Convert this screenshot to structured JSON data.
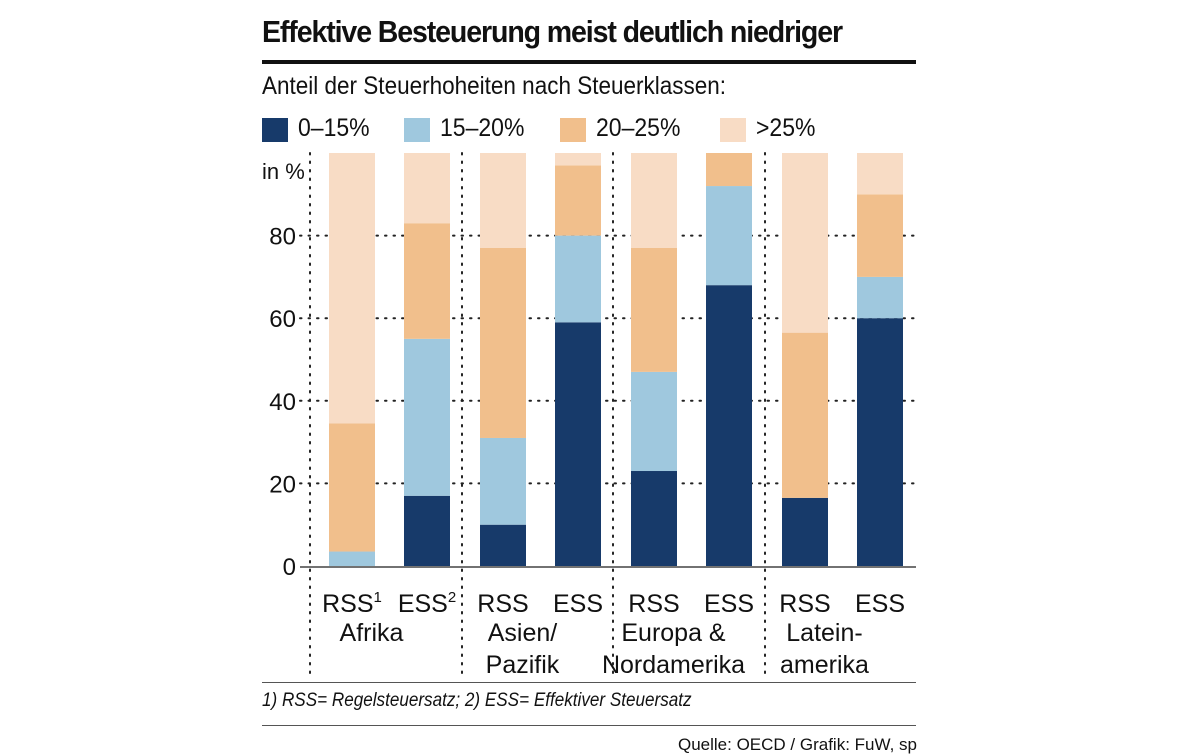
{
  "title": "Effektive Besteuerung meist deutlich niedriger",
  "subtitle": "Anteil der Steuerhoheiten nach Steuerklassen:",
  "legend": [
    {
      "label": "0–15%",
      "color": "#173a6a"
    },
    {
      "label": "15–20%",
      "color": "#9fc8de"
    },
    {
      "label": "20–25%",
      "color": "#f1bf8c"
    },
    {
      "label": ">25%",
      "color": "#f8dcc5"
    }
  ],
  "footnote": "1) RSS= Regelsteuersatz;   2) ESS= Effektiver Steuersatz",
  "source": "Quelle: OECD / Grafik: FuW, sp",
  "chart_data": {
    "type": "bar",
    "stacked": true,
    "ylabel": "in %",
    "ylim": [
      0,
      100
    ],
    "yticks": [
      0,
      20,
      40,
      60,
      80
    ],
    "grid": "dotted horizontal",
    "groups": [
      {
        "name_lines": [
          "Afrika"
        ],
        "bars": [
          {
            "label": "RSS",
            "sup": "1"
          },
          {
            "label": "ESS",
            "sup": "2"
          }
        ]
      },
      {
        "name_lines": [
          "Asien/",
          "Pazifik"
        ],
        "bars": [
          {
            "label": "RSS",
            "sup": ""
          },
          {
            "label": "ESS",
            "sup": ""
          }
        ]
      },
      {
        "name_lines": [
          "Europa &",
          "Nordamerika"
        ],
        "bars": [
          {
            "label": "RSS",
            "sup": ""
          },
          {
            "label": "ESS",
            "sup": ""
          }
        ]
      },
      {
        "name_lines": [
          "Latein-",
          "amerika"
        ],
        "bars": [
          {
            "label": "RSS",
            "sup": ""
          },
          {
            "label": "ESS",
            "sup": ""
          }
        ]
      }
    ],
    "categories": [
      "Afrika RSS",
      "Afrika ESS",
      "Asien/Pazifik RSS",
      "Asien/Pazifik ESS",
      "Europa & Nordamerika RSS",
      "Europa & Nordamerika ESS",
      "Lateinamerika RSS",
      "Lateinamerika ESS"
    ],
    "series": [
      {
        "name": "0–15%",
        "color": "#173a6a",
        "values": [
          0,
          17,
          10,
          59,
          23,
          68,
          16.5,
          60
        ]
      },
      {
        "name": "15–20%",
        "color": "#9fc8de",
        "values": [
          3.5,
          38,
          21,
          21,
          24,
          24,
          0,
          10
        ]
      },
      {
        "name": "20–25%",
        "color": "#f1bf8c",
        "values": [
          31,
          28,
          46,
          17,
          30,
          8,
          40,
          20
        ]
      },
      {
        "name": ">25%",
        "color": "#f8dcc5",
        "values": [
          65.5,
          17,
          23,
          3,
          23,
          0,
          43.5,
          10
        ]
      }
    ]
  }
}
